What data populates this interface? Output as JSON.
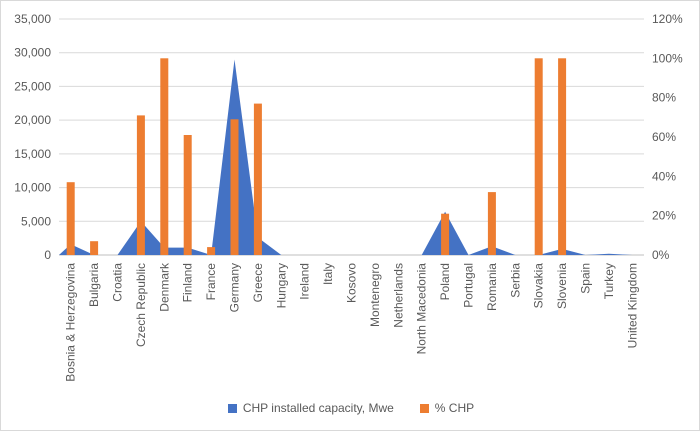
{
  "chart_data": {
    "type": "area",
    "categories": [
      "Bosnia & Herzegovina",
      "Bulgaria",
      "Croatia",
      "Czech Republic",
      "Denmark",
      "Finland",
      "France",
      "Germany",
      "Greece",
      "Hungary",
      "Ireland",
      "Italy",
      "Kosovo",
      "Montenegro",
      "Netherlands",
      "North Macedonia",
      "Poland",
      "Portugal",
      "Romania",
      "Serbia",
      "Slovakia",
      "Slovenia",
      "Spain",
      "Turkey",
      "United Kingdom"
    ],
    "series": [
      {
        "name": "CHP installed capacity, Mwe",
        "kind": "area",
        "axis": "left",
        "color": "#4472C4",
        "values": [
          1600,
          0,
          0,
          5000,
          1100,
          1100,
          0,
          29000,
          2600,
          0,
          0,
          0,
          0,
          0,
          0,
          0,
          6400,
          0,
          1300,
          0,
          0,
          900,
          0,
          200,
          0
        ]
      },
      {
        "name": "% CHP",
        "kind": "bar",
        "axis": "right",
        "color": "#ED7D31",
        "values": [
          37,
          7,
          0,
          71,
          100,
          61,
          4,
          69,
          77,
          0,
          0,
          0,
          0,
          0,
          0,
          0,
          21,
          0,
          32,
          0,
          100,
          100,
          0,
          0,
          0
        ]
      }
    ],
    "y_left": {
      "min": 0,
      "max": 35000,
      "ticks": [
        "0",
        "5,000",
        "10,000",
        "15,000",
        "20,000",
        "25,000",
        "30,000",
        "35,000"
      ]
    },
    "y_right": {
      "min": 0,
      "max": 120,
      "ticks": [
        "0%",
        "20%",
        "40%",
        "60%",
        "80%",
        "100%",
        "120%"
      ]
    },
    "grid": true,
    "legend_position": "bottom"
  }
}
